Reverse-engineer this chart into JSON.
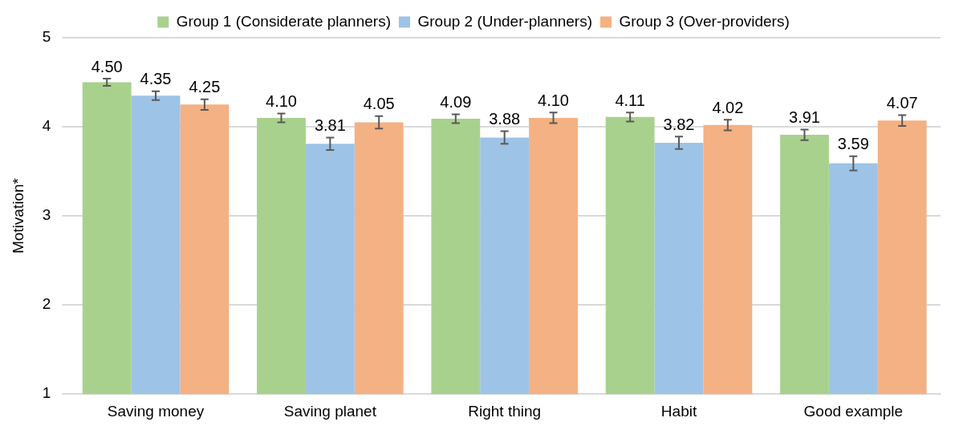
{
  "chart_data": {
    "type": "bar",
    "ylabel": "Motivation*",
    "categories": [
      "Saving money",
      "Saving planet",
      "Right thing",
      "Habit",
      "Good example"
    ],
    "series": [
      {
        "name": "Group 1 (Considerate planners)",
        "color": "#a9d18e",
        "values": [
          4.5,
          4.1,
          4.09,
          4.11,
          3.91
        ],
        "errors": [
          0.04,
          0.05,
          0.05,
          0.05,
          0.06
        ],
        "value_labels": [
          "4.50",
          "4.10",
          "4.09",
          "4.11",
          "3.91"
        ]
      },
      {
        "name": "Group 2 (Under-planners)",
        "color": "#9dc3e6",
        "values": [
          4.35,
          3.81,
          3.88,
          3.82,
          3.59
        ],
        "errors": [
          0.05,
          0.07,
          0.07,
          0.07,
          0.08
        ],
        "value_labels": [
          "4.35",
          "3.81",
          "3.88",
          "3.82",
          "3.59"
        ]
      },
      {
        "name": "Group 3 (Over-providers)",
        "color": "#f4b183",
        "values": [
          4.25,
          4.05,
          4.1,
          4.02,
          4.07
        ],
        "errors": [
          0.06,
          0.07,
          0.06,
          0.06,
          0.06
        ],
        "value_labels": [
          "4.25",
          "4.05",
          "4.10",
          "4.02",
          "4.07"
        ]
      }
    ],
    "ylim": [
      1,
      5
    ],
    "yticks": [
      1,
      2,
      3,
      4,
      5
    ],
    "grid": "y",
    "legend": "top"
  }
}
